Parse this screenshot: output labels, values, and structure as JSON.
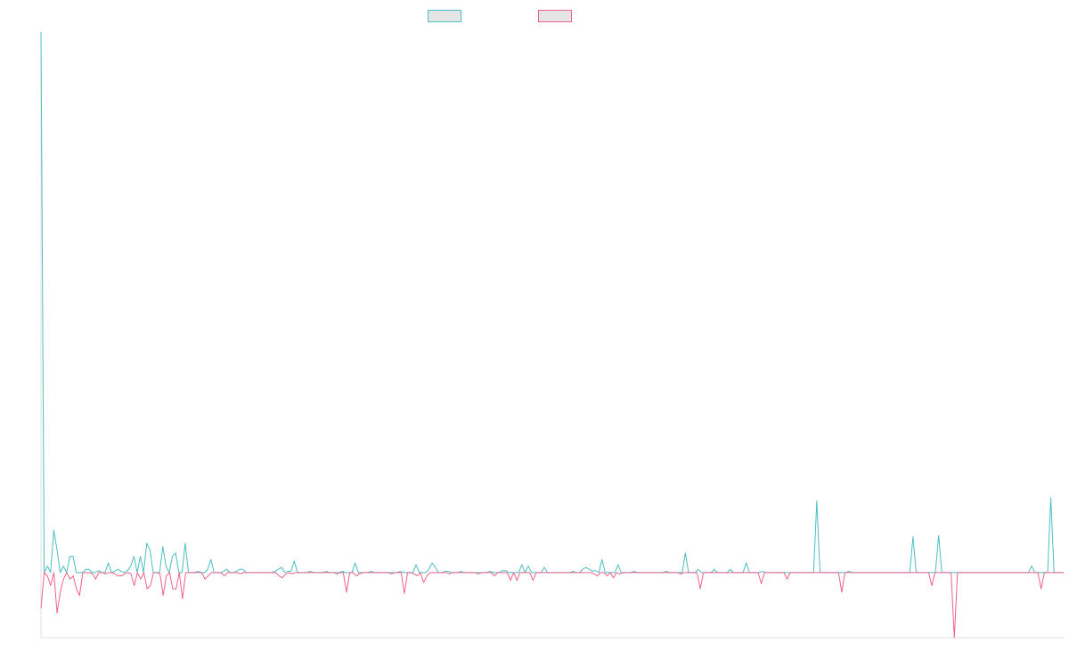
{
  "chart_data": {
    "type": "line",
    "title": "",
    "xlabel": "",
    "ylabel": "",
    "ylim": [
      -1,
      8.3
    ],
    "grid": false,
    "legend": "top-center",
    "series": [
      {
        "name": "",
        "color": "#4bbfc3",
        "fill": "#e5e5e5",
        "values": [
          8.3,
          0,
          0.1,
          0,
          0.65,
          0.35,
          0,
          0.1,
          0,
          0.25,
          0.25,
          0,
          0,
          0,
          0.05,
          0.05,
          0,
          0,
          0.03,
          0,
          0,
          0.15,
          0,
          0.02,
          0.05,
          0.02,
          0,
          0.03,
          0.1,
          0.25,
          0,
          0.25,
          0,
          0.45,
          0.35,
          0,
          0,
          0,
          0.4,
          0.1,
          0,
          0.25,
          0.3,
          0,
          0,
          0.45,
          0,
          0,
          0,
          0.02,
          0,
          0,
          0.05,
          0.2,
          0,
          0,
          0,
          0.02,
          0.05,
          0,
          0,
          0.02,
          0.05,
          0.05,
          0,
          0,
          0,
          0,
          0,
          0,
          0,
          0,
          0,
          0.02,
          0.05,
          0.08,
          0,
          0.02,
          0.02,
          0.18,
          0,
          0,
          0,
          0,
          0.02,
          0,
          0,
          0,
          0,
          0.02,
          0,
          0,
          0,
          0,
          0.02,
          0,
          0,
          0,
          0.15,
          0,
          0,
          0,
          0,
          0.02,
          0,
          0,
          0,
          0,
          0,
          0,
          0,
          0,
          0.02,
          0,
          0,
          0,
          0,
          0.12,
          0,
          0,
          0,
          0.05,
          0.15,
          0.08,
          0,
          0,
          0.02,
          0.02,
          0,
          0,
          0,
          0.02,
          0,
          0,
          0,
          0,
          0,
          0,
          0,
          0,
          0.02,
          0,
          0,
          0,
          0.03,
          0.03,
          0,
          0,
          0,
          0,
          0.12,
          0,
          0.1,
          0,
          0,
          0,
          0,
          0.08,
          0,
          0,
          0,
          0,
          0,
          0,
          0,
          0,
          0.02,
          0,
          0,
          0.05,
          0.08,
          0.05,
          0.02,
          0.03,
          0,
          0.2,
          0,
          0,
          0,
          0,
          0.12,
          0,
          0,
          0,
          0,
          0.02,
          0,
          0,
          0,
          0,
          0,
          0,
          0,
          0,
          0,
          0.02,
          0,
          0,
          0,
          0,
          0,
          0.3,
          0,
          0,
          0,
          0.05,
          0,
          0,
          0,
          0,
          0.05,
          0,
          0,
          0,
          0,
          0.05,
          0,
          0,
          0,
          0,
          0.15,
          0,
          0,
          0,
          0,
          0.02,
          0,
          0,
          0,
          0,
          0,
          0,
          0,
          0,
          0,
          0,
          0,
          0,
          0,
          0,
          0,
          0,
          1.1,
          0,
          0,
          0,
          0,
          0,
          0,
          0,
          0,
          0,
          0.02,
          0,
          0,
          0,
          0,
          0,
          0,
          0,
          0,
          0,
          0,
          0,
          0,
          0,
          0,
          0,
          0,
          0,
          0,
          0,
          0.55,
          0,
          0,
          0,
          0,
          0,
          0,
          0,
          0.57,
          0,
          0,
          0,
          0,
          0,
          0,
          0,
          0,
          0,
          0,
          0,
          0,
          0,
          0,
          0,
          0,
          0,
          0,
          0,
          0,
          0,
          0,
          0,
          0,
          0,
          0,
          0,
          0,
          0.1,
          0,
          0,
          0,
          0,
          0,
          1.15,
          0,
          0,
          0,
          0
        ]
      },
      {
        "name": "",
        "color": "#f0628a",
        "fill": "#e5e5e5",
        "values": [
          -0.55,
          0,
          -0.05,
          -0.2,
          0,
          -0.62,
          -0.3,
          -0.1,
          0,
          -0.1,
          -0.05,
          -0.25,
          -0.35,
          0,
          0,
          0,
          -0.02,
          -0.1,
          0,
          0,
          -0.02,
          0,
          0,
          -0.02,
          -0.05,
          -0.05,
          -0.02,
          0,
          -0.02,
          -0.2,
          0,
          -0.1,
          0,
          -0.25,
          -0.2,
          0,
          0,
          -0.02,
          -0.35,
          -0.05,
          0,
          -0.25,
          -0.25,
          0,
          -0.4,
          0,
          0,
          0,
          0,
          0,
          0,
          -0.1,
          -0.05,
          0,
          0,
          0,
          0,
          -0.05,
          0,
          0,
          0,
          0,
          -0.02,
          0,
          0,
          0,
          0,
          0,
          0,
          0,
          0,
          0,
          0,
          0,
          -0.05,
          -0.08,
          -0.03,
          0,
          -0.02,
          0,
          0,
          0,
          0,
          0,
          0,
          0,
          0,
          0,
          0,
          0,
          0,
          0,
          -0.02,
          0,
          0,
          -0.3,
          0,
          0,
          -0.05,
          -0.02,
          0,
          0,
          0,
          0,
          0,
          0,
          0,
          0,
          0,
          -0.02,
          0,
          0,
          0,
          -0.32,
          0,
          0,
          -0.02,
          -0.05,
          0,
          -0.15,
          -0.05,
          0,
          0,
          0,
          0,
          0,
          0,
          -0.02,
          0,
          0,
          0,
          0,
          0,
          0,
          0,
          0,
          -0.02,
          0,
          0,
          0,
          0,
          -0.05,
          0,
          0,
          0,
          0,
          -0.12,
          0,
          -0.12,
          0,
          0,
          0,
          0,
          -0.12,
          0,
          0,
          0,
          0,
          0,
          0,
          0,
          0,
          0,
          0,
          0,
          0,
          0,
          0,
          0,
          0,
          0,
          0,
          -0.02,
          -0.05,
          0,
          0,
          -0.05,
          0,
          -0.08,
          0,
          -0.02,
          0,
          0,
          0,
          0,
          0,
          0,
          0,
          0,
          0,
          0,
          0,
          0,
          0,
          0,
          0,
          0,
          0,
          0,
          -0.02,
          0,
          0,
          0,
          0,
          0,
          -0.25,
          0,
          0,
          0,
          0,
          0,
          0,
          0,
          0,
          0,
          0,
          0,
          0,
          0,
          0,
          0,
          0,
          0,
          0,
          -0.17,
          0,
          0,
          0,
          0,
          0,
          0,
          0,
          -0.1,
          0,
          0,
          0,
          0,
          0,
          0,
          0,
          0,
          0,
          0,
          0,
          0,
          0,
          0,
          0,
          0,
          -0.3,
          0,
          0,
          0,
          0,
          0,
          0,
          0,
          0,
          0,
          0,
          0,
          0,
          0,
          0,
          0,
          0,
          0,
          0,
          0,
          0,
          0,
          0,
          0,
          0,
          0,
          0,
          0,
          -0.2,
          0,
          0,
          0,
          0,
          0,
          0,
          -1,
          0,
          0,
          0,
          0,
          0,
          0,
          0,
          0,
          0,
          0,
          0,
          0,
          0,
          0,
          0,
          0,
          0,
          0,
          0,
          0,
          0,
          0,
          0,
          0,
          0,
          0,
          -0.25,
          0,
          0,
          0,
          0,
          0,
          0,
          0
        ]
      }
    ]
  }
}
